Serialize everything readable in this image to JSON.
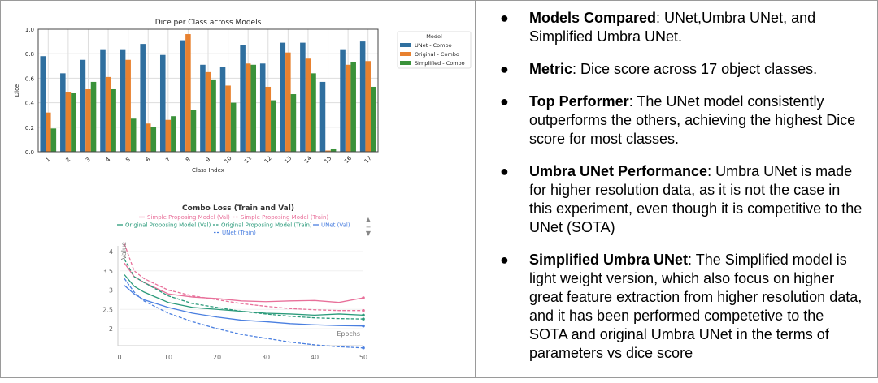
{
  "chart_data": [
    {
      "type": "bar",
      "title": "Dice per Class across Models",
      "xlabel": "Class Index",
      "ylabel": "Dice",
      "ylim": [
        0,
        1.0
      ],
      "yticks": [
        "0.0",
        "0.2",
        "0.4",
        "0.6",
        "0.8",
        "1.0"
      ],
      "grid": true,
      "legend_title": "Model",
      "legend_position": "right",
      "categories": [
        "1",
        "2",
        "3",
        "4",
        "5",
        "6",
        "7",
        "8",
        "9",
        "10",
        "11",
        "12",
        "13",
        "14",
        "15",
        "16",
        "17"
      ],
      "series": [
        {
          "name": "UNet - Combo",
          "color": "#2f6f9f",
          "values": [
            0.78,
            0.64,
            0.75,
            0.83,
            0.83,
            0.88,
            0.79,
            0.91,
            0.71,
            0.69,
            0.87,
            0.72,
            0.89,
            0.89,
            0.57,
            0.83,
            0.9
          ]
        },
        {
          "name": "Original - Combo",
          "color": "#e8812f",
          "values": [
            0.32,
            0.49,
            0.51,
            0.61,
            0.75,
            0.23,
            0.26,
            0.96,
            0.65,
            0.54,
            0.72,
            0.53,
            0.81,
            0.76,
            0.01,
            0.71,
            0.74
          ]
        },
        {
          "name": "Simplified - Combo",
          "color": "#3a923a",
          "values": [
            0.19,
            0.48,
            0.57,
            0.51,
            0.27,
            0.2,
            0.29,
            0.34,
            0.59,
            0.4,
            0.71,
            0.42,
            0.47,
            0.64,
            0.02,
            0.73,
            0.53
          ]
        }
      ]
    },
    {
      "type": "line",
      "title": "Combo Loss (Train and Val)",
      "xlabel": "Epochs",
      "ylabel": "Value",
      "xlim": [
        0,
        50
      ],
      "xticks": [
        "0",
        "10",
        "20",
        "30",
        "40",
        "50"
      ],
      "yticks": [
        "2",
        "2.5",
        "3",
        "3.5",
        "4"
      ],
      "legend_position": "top",
      "x": [
        1,
        3,
        5,
        10,
        15,
        20,
        25,
        30,
        35,
        40,
        45,
        50
      ],
      "series": [
        {
          "name": "Simple Proposing Model (Val)",
          "color": "#e8709a",
          "dash": false,
          "values": [
            3.7,
            3.35,
            3.2,
            2.9,
            2.82,
            2.78,
            2.72,
            2.7,
            2.72,
            2.73,
            2.68,
            2.8
          ]
        },
        {
          "name": "Simple Proposing Model (Train)",
          "color": "#e8709a",
          "dash": true,
          "values": [
            4.2,
            3.5,
            3.3,
            3.0,
            2.85,
            2.75,
            2.65,
            2.58,
            2.52,
            2.49,
            2.47,
            2.47
          ]
        },
        {
          "name": "Original Proposing Model (Val)",
          "color": "#2a9a7a",
          "dash": false,
          "values": [
            3.4,
            3.1,
            2.95,
            2.68,
            2.55,
            2.5,
            2.45,
            2.4,
            2.38,
            2.35,
            2.38,
            2.35
          ]
        },
        {
          "name": "Original Proposing Model (Train)",
          "color": "#2a9a7a",
          "dash": true,
          "values": [
            3.8,
            3.35,
            3.2,
            2.85,
            2.65,
            2.55,
            2.45,
            2.38,
            2.32,
            2.28,
            2.26,
            2.25
          ]
        },
        {
          "name": "UNet (Val)",
          "color": "#4a7fe0",
          "dash": false,
          "values": [
            3.12,
            2.9,
            2.75,
            2.55,
            2.4,
            2.3,
            2.22,
            2.18,
            2.13,
            2.1,
            2.08,
            2.07
          ]
        },
        {
          "name": "UNet (Train)",
          "color": "#4a7fe0",
          "dash": true,
          "values": [
            3.3,
            2.95,
            2.72,
            2.4,
            2.18,
            2.0,
            1.85,
            1.75,
            1.65,
            1.58,
            1.53,
            1.5
          ]
        }
      ]
    }
  ],
  "bullets": [
    {
      "title": "Models Compared",
      "text": ": UNet,Umbra UNet, and Simplified Umbra UNet."
    },
    {
      "title": "Metric",
      "text": ": Dice score across 17 object classes."
    },
    {
      "title": "Top Performer",
      "text": ": The UNet model consistently outperforms the others, achieving the highest Dice score for most classes."
    },
    {
      "title": "Umbra UNet Performance",
      "text": ": Umbra UNet is made for higher resolution data, as it is not the case in this experiment, even though it is competitive to the UNet (SOTA)"
    },
    {
      "title": "Simplified Umbra UNet",
      "text": ": The Simplified model is light weight version, which also focus on higher great feature extraction from higher resolution data, and it has been performed competetive to the SOTA and original Umbra UNet in the terms of parameters vs dice score"
    }
  ],
  "bullet_symbol": "●"
}
